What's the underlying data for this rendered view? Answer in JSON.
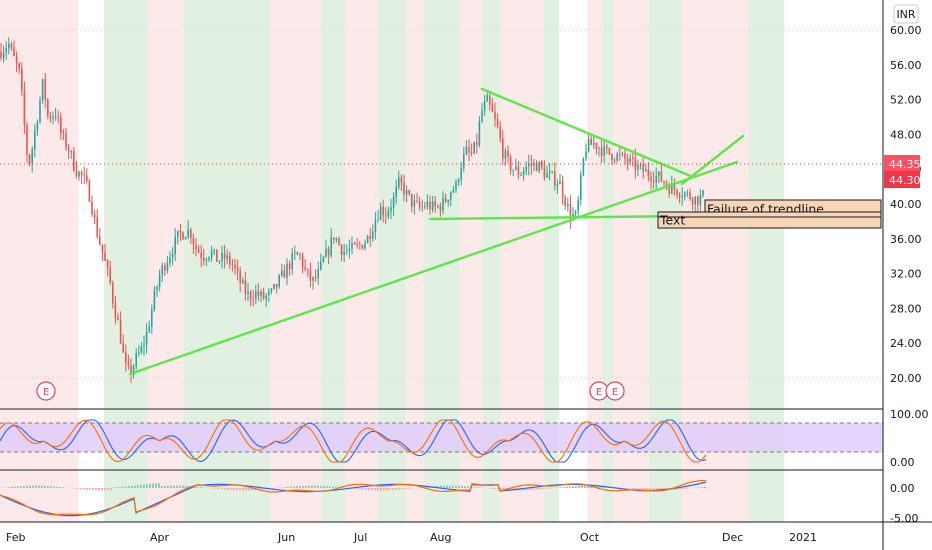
{
  "chart_data": {
    "type": "candlestick",
    "currency": "INR",
    "price_axis": {
      "ticks": [
        20,
        24,
        28,
        32,
        36,
        40,
        44,
        48,
        52,
        56,
        60
      ],
      "tick_labels": [
        "20.00",
        "24.00",
        "28.00",
        "32.00",
        "36.00",
        "40.00",
        "44.00",
        "48.00",
        "52.00",
        "56.00",
        "60.00"
      ],
      "range": [
        18.3,
        61.5
      ]
    },
    "time_axis": {
      "labels": [
        "Feb",
        "Apr",
        "Jun",
        "Jul",
        "Aug",
        "Oct",
        "Dec",
        "2021"
      ]
    },
    "price_tags": [
      {
        "label": "44.35",
        "value": 44.35,
        "color": "#f7525f",
        "style": "outline"
      },
      {
        "label": "44.30",
        "value": 44.3,
        "color": "#f23645",
        "style": "filled"
      }
    ],
    "key_prices": {
      "high_feb": 58.5,
      "low_mar": 20.1,
      "peak_aug": 53.3,
      "sep_low": 38.1,
      "last": 44.3
    },
    "trendlines": [
      {
        "name": "rising support",
        "from": {
          "date": "2020-03-24",
          "price": 20.1
        },
        "to": {
          "date": "2020-11-28",
          "price": 44.6
        }
      },
      {
        "name": "falling resistance",
        "from": {
          "date": "2020-08-18",
          "price": 53.2
        },
        "to": {
          "date": "2020-11-18",
          "price": 42.1
        }
      },
      {
        "name": "horizontal support",
        "from": {
          "date": "2020-08-01",
          "price": 38.1
        },
        "to": {
          "date": "2020-11-18",
          "price": 38.3
        }
      },
      {
        "name": "breakout",
        "from": {
          "date": "2020-11-17",
          "price": 40.1
        },
        "to": {
          "date": "2020-12-01",
          "price": 47.7
        }
      }
    ],
    "annotations": [
      {
        "text": "Failure of trendline",
        "price_top": 40.4,
        "price_bottom": 38.5
      },
      {
        "text": "Text",
        "price_top": 38.5,
        "price_bottom": 37.0
      }
    ],
    "earnings_markers": [
      "E",
      "E",
      "E"
    ],
    "stoch_rsi": {
      "ticks": [
        0,
        100
      ],
      "tick_labels": [
        "0.00",
        "100.00"
      ],
      "band": [
        20,
        80
      ],
      "series": [
        {
          "color": "#2962ff"
        },
        {
          "color": "#ff6d00"
        }
      ]
    },
    "macd": {
      "ticks": [
        -5,
        0
      ],
      "tick_labels": [
        "-5.00",
        "0.00"
      ],
      "series": [
        {
          "color": "#2962ff"
        },
        {
          "color": "#ff6d00"
        }
      ],
      "histogram_color": "#26a69a"
    },
    "colors": {
      "up": "#26a69a",
      "down": "#ef5350",
      "trendline": "#5fe64a",
      "bull_zone": "#d9ecd9",
      "bear_zone": "#fbe3e3",
      "stoch_fill": "#e1cdfa"
    }
  }
}
